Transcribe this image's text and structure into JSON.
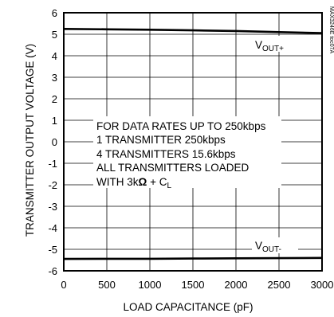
{
  "chart_data": {
    "type": "line",
    "title": "",
    "xlabel": "LOAD CAPACITANCE (pF)",
    "ylabel": "TRANSMITTER OUTPUT VOLTAGE (V)",
    "xlim": [
      0,
      3000
    ],
    "ylim": [
      -6,
      6
    ],
    "xticks": [
      "0",
      "500",
      "1000",
      "1500",
      "2000",
      "2500",
      "3000"
    ],
    "yticks": [
      "6",
      "5",
      "4",
      "3",
      "2",
      "1",
      "0",
      "-1",
      "-2",
      "-3",
      "-4",
      "-5",
      "-6"
    ],
    "grid": true,
    "series": [
      {
        "name": "VOUT+",
        "label_main": "V",
        "label_sub": "OUT+",
        "x": [
          0,
          500,
          1000,
          1500,
          2000,
          2500,
          3000
        ],
        "y": [
          5.25,
          5.23,
          5.21,
          5.18,
          5.15,
          5.1,
          5.05
        ]
      },
      {
        "name": "VOUT-",
        "label_main": "V",
        "label_sub": "OUT-",
        "x": [
          0,
          500,
          1000,
          1500,
          2000,
          2500,
          3000
        ],
        "y": [
          -5.45,
          -5.44,
          -5.44,
          -5.43,
          -5.42,
          -5.41,
          -5.4
        ]
      }
    ],
    "annotation": {
      "lines": [
        "FOR DATA RATES UP TO 250kbps",
        "1 TRANSMITTER 250kbps",
        "4 TRANSMITTERS 15.6kbps",
        "ALL TRANSMITTERS LOADED"
      ],
      "last_line_prefix": "WITH 3k",
      "last_line_omega": "Ω",
      "last_line_plus": " + C",
      "last_line_sub": "L"
    },
    "watermark": "MAX3246E toc07A"
  }
}
